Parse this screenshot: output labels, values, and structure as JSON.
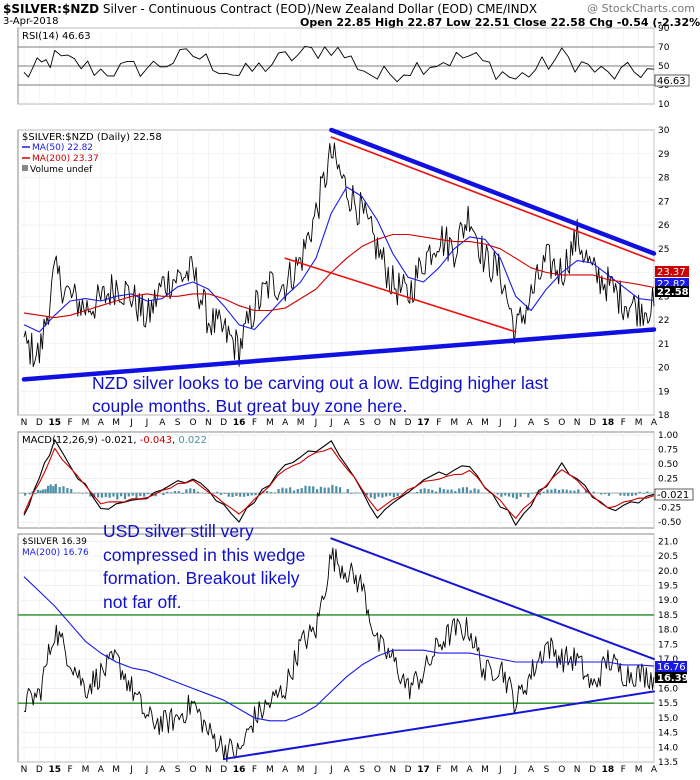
{
  "header": {
    "symbol": "$SILVER:$NZD",
    "description": "Silver - Continuous Contract (EOD)/New Zealand Dollar (EOD)",
    "exchange": "CME/INDX",
    "date": "3-Apr-2018",
    "open": "Open 22.85",
    "high": "High 22.87",
    "low": "Low 22.51",
    "close": "Close 22.58",
    "change": "Chg -0.54 (-2.32%)",
    "copyright": "@ StockCharts.com"
  },
  "colors": {
    "price": "#000000",
    "ma50": "#1a1ae6",
    "ma200": "#cc0000",
    "trend_thick": "#1010e0",
    "trend_red": "#ee1111",
    "trend_thin": "#1515d8",
    "horizontal": "#228b22",
    "macd_hist": "#4a8fa8",
    "annotation": "#1010c8"
  },
  "rsi_panel": {
    "legend": "RSI(14) 46.63",
    "ticks": [
      "90",
      "70",
      "50",
      "30",
      "10"
    ],
    "current_label": "46.63"
  },
  "nzd_panel": {
    "legend_symbol": "$SILVER:$NZD (Daily) 22.58",
    "legend_ma50": "MA(50) 22.82",
    "legend_ma200": "MA(200) 23.37",
    "legend_volume": "Volume undef",
    "ticks": [
      "30",
      "29",
      "28",
      "27",
      "26",
      "25",
      "24",
      "23",
      "22",
      "21",
      "20",
      "19",
      "18"
    ],
    "label_ma200": "23.37",
    "label_ma50": "22.82",
    "label_close": "22.58",
    "annotation_line1": "NZD silver looks to be carving out a low. Edging higher last",
    "annotation_line2": "couple months. But great buy zone here."
  },
  "macd_panel": {
    "legend_prefix": "MACD(12,26,9)",
    "legend_v1": "-0.021",
    "legend_v2": "-0.043",
    "legend_v3": "0.022",
    "ticks": [
      "1.00",
      "0.75",
      "0.50",
      "0.25",
      "0.00",
      "-0.25",
      "-0.50"
    ],
    "current_label": "-0.021"
  },
  "usd_panel": {
    "legend_symbol": "$SILVER 16.39",
    "legend_ma200": "MA(200) 16.76",
    "ticks": [
      "21.0",
      "20.5",
      "20.0",
      "19.5",
      "19.0",
      "18.5",
      "18.0",
      "17.5",
      "17.0",
      "16.5",
      "16.0",
      "15.5",
      "15.0",
      "14.5",
      "14.0",
      "13.5"
    ],
    "label_ma200": "16.76",
    "label_close": "16.39",
    "annotation_line1": "USD silver still very",
    "annotation_line2": "compressed in this wedge",
    "annotation_line3": "formation. Breakout likely",
    "annotation_line4": "not far off."
  },
  "x_axis": {
    "labels": [
      "N",
      "D",
      "15",
      "F",
      "M",
      "A",
      "M",
      "J",
      "J",
      "A",
      "S",
      "O",
      "N",
      "D",
      "16",
      "F",
      "M",
      "A",
      "M",
      "J",
      "J",
      "A",
      "S",
      "O",
      "N",
      "D",
      "17",
      "F",
      "M",
      "A",
      "M",
      "J",
      "J",
      "A",
      "S",
      "O",
      "N",
      "D",
      "18",
      "F",
      "M",
      "A"
    ]
  },
  "chart_data": [
    {
      "type": "line",
      "name": "RSI(14)",
      "ylim": [
        10,
        90
      ],
      "guide_lines": [
        70,
        50,
        30
      ],
      "x": [
        "2014-11",
        "2015-01",
        "2015-04",
        "2015-07",
        "2015-10",
        "2016-01",
        "2016-04",
        "2016-07",
        "2016-10",
        "2017-01",
        "2017-04",
        "2017-07",
        "2017-10",
        "2018-01",
        "2018-04"
      ],
      "values": [
        40,
        58,
        45,
        48,
        62,
        40,
        58,
        70,
        38,
        52,
        60,
        36,
        60,
        40,
        46.63
      ]
    },
    {
      "type": "line",
      "title": "$SILVER:$NZD (Daily)",
      "ylim": [
        18,
        30
      ],
      "x": [
        "2014-11",
        "2014-12",
        "2015-01",
        "2015-02",
        "2015-03",
        "2015-04",
        "2015-05",
        "2015-06",
        "2015-07",
        "2015-08",
        "2015-09",
        "2015-10",
        "2015-11",
        "2015-12",
        "2016-01",
        "2016-02",
        "2016-03",
        "2016-04",
        "2016-05",
        "2016-06",
        "2016-07",
        "2016-08",
        "2016-09",
        "2016-10",
        "2016-11",
        "2016-12",
        "2017-01",
        "2017-02",
        "2017-03",
        "2017-04",
        "2017-05",
        "2017-06",
        "2017-07",
        "2017-08",
        "2017-09",
        "2017-10",
        "2017-11",
        "2017-12",
        "2018-01",
        "2018-02",
        "2018-03",
        "2018-04"
      ],
      "series": [
        {
          "name": "$SILVER:$NZD",
          "values": [
            21.0,
            20.5,
            24.0,
            23.0,
            22.5,
            22.8,
            23.5,
            23.0,
            22.0,
            23.5,
            23.8,
            24.0,
            22.0,
            21.5,
            20.8,
            22.5,
            23.5,
            23.5,
            24.5,
            26.5,
            29.0,
            27.5,
            26.5,
            25.0,
            23.5,
            23.0,
            24.5,
            25.5,
            25.0,
            26.5,
            24.5,
            24.0,
            21.5,
            23.0,
            24.5,
            24.0,
            25.5,
            24.0,
            23.5,
            22.8,
            22.5,
            22.58
          ]
        },
        {
          "name": "MA(50)",
          "values": [
            21.8,
            21.5,
            22.2,
            22.8,
            22.9,
            22.8,
            23.0,
            23.1,
            22.8,
            22.9,
            23.4,
            23.6,
            23.3,
            22.6,
            21.8,
            21.6,
            22.3,
            23.0,
            23.6,
            24.6,
            26.5,
            27.6,
            27.2,
            26.2,
            24.8,
            23.8,
            23.6,
            24.2,
            25.0,
            25.5,
            25.4,
            24.6,
            23.0,
            22.4,
            23.3,
            24.0,
            24.5,
            24.4,
            23.9,
            23.4,
            22.9,
            22.82
          ]
        },
        {
          "name": "MA(200)",
          "values": [
            22.3,
            22.2,
            22.1,
            22.2,
            22.4,
            22.6,
            22.8,
            23.0,
            23.1,
            23.0,
            23.0,
            23.1,
            23.1,
            22.9,
            22.6,
            22.4,
            22.4,
            22.5,
            22.9,
            23.3,
            24.0,
            24.6,
            25.1,
            25.4,
            25.6,
            25.6,
            25.5,
            25.4,
            25.3,
            25.3,
            25.2,
            25.0,
            24.6,
            24.2,
            24.0,
            23.9,
            23.9,
            23.9,
            23.7,
            23.6,
            23.5,
            23.37
          ]
        }
      ],
      "trendlines": [
        {
          "name": "upper wedge",
          "from": [
            "2016-07",
            30.0
          ],
          "to": [
            "2018-04",
            24.8
          ]
        },
        {
          "name": "lower support",
          "from": [
            "2014-11",
            19.5
          ],
          "to": [
            "2018-04",
            21.6
          ]
        },
        {
          "name": "upper channel",
          "from": [
            "2016-07",
            29.7
          ],
          "to": [
            "2018-04",
            24.5
          ]
        },
        {
          "name": "lower channel",
          "from": [
            "2016-04",
            24.6
          ],
          "to": [
            "2017-07",
            21.5
          ]
        }
      ]
    },
    {
      "type": "line",
      "name": "MACD(12,26,9)",
      "ylim": [
        -0.6,
        1.05
      ],
      "x": [
        "2014-11",
        "2015-01",
        "2015-04",
        "2015-07",
        "2015-10",
        "2016-01",
        "2016-04",
        "2016-07",
        "2016-10",
        "2017-01",
        "2017-04",
        "2017-07",
        "2017-10",
        "2018-01",
        "2018-04"
      ],
      "series": [
        {
          "name": "MACD",
          "values": [
            -0.4,
            0.9,
            -0.3,
            -0.1,
            0.3,
            -0.45,
            0.5,
            0.9,
            -0.4,
            0.25,
            0.45,
            -0.5,
            0.5,
            -0.3,
            -0.021
          ]
        },
        {
          "name": "Signal",
          "values": [
            -0.35,
            0.75,
            -0.2,
            -0.05,
            0.25,
            -0.38,
            0.42,
            0.8,
            -0.3,
            0.2,
            0.38,
            -0.42,
            0.42,
            -0.25,
            -0.043
          ]
        },
        {
          "name": "Histogram",
          "values": [
            -0.05,
            0.15,
            -0.1,
            -0.05,
            0.05,
            -0.07,
            0.08,
            0.1,
            -0.1,
            0.05,
            0.07,
            -0.08,
            0.08,
            -0.05,
            0.022
          ]
        }
      ]
    },
    {
      "type": "line",
      "title": "$SILVER",
      "ylim": [
        13.5,
        21.25
      ],
      "x": [
        "2014-11",
        "2014-12",
        "2015-01",
        "2015-02",
        "2015-03",
        "2015-04",
        "2015-05",
        "2015-06",
        "2015-07",
        "2015-08",
        "2015-09",
        "2015-10",
        "2015-11",
        "2015-12",
        "2016-01",
        "2016-02",
        "2016-03",
        "2016-04",
        "2016-05",
        "2016-06",
        "2016-07",
        "2016-08",
        "2016-09",
        "2016-10",
        "2016-11",
        "2016-12",
        "2017-01",
        "2017-02",
        "2017-03",
        "2017-04",
        "2017-05",
        "2017-06",
        "2017-07",
        "2017-08",
        "2017-09",
        "2017-10",
        "2017-11",
        "2017-12",
        "2018-01",
        "2018-02",
        "2018-03",
        "2018-04"
      ],
      "series": [
        {
          "name": "$SILVER",
          "values": [
            15.5,
            15.8,
            18.0,
            17.0,
            16.0,
            16.5,
            17.0,
            16.0,
            15.0,
            14.8,
            15.0,
            15.5,
            14.5,
            14.0,
            13.8,
            15.0,
            15.5,
            16.0,
            17.5,
            18.0,
            20.5,
            20.0,
            19.5,
            17.5,
            17.0,
            16.0,
            16.5,
            17.5,
            18.0,
            18.0,
            16.5,
            16.8,
            15.5,
            16.5,
            17.5,
            17.0,
            17.0,
            16.0,
            17.0,
            16.5,
            16.5,
            16.39
          ]
        },
        {
          "name": "MA(200)",
          "values": [
            19.8,
            19.3,
            18.8,
            18.2,
            17.6,
            17.2,
            16.9,
            16.7,
            16.6,
            16.4,
            16.2,
            16.0,
            15.8,
            15.6,
            15.3,
            15.0,
            14.9,
            14.9,
            15.1,
            15.4,
            15.9,
            16.4,
            16.8,
            17.1,
            17.3,
            17.3,
            17.3,
            17.2,
            17.2,
            17.2,
            17.1,
            17.0,
            16.9,
            16.9,
            16.9,
            16.9,
            16.9,
            16.9,
            16.9,
            16.8,
            16.8,
            16.76
          ]
        }
      ],
      "trendlines": [
        {
          "name": "upper wedge",
          "from": [
            "2016-07",
            21.1
          ],
          "to": [
            "2018-04",
            17.0
          ]
        },
        {
          "name": "lower wedge",
          "from": [
            "2015-12",
            13.6
          ],
          "to": [
            "2018-04",
            15.9
          ]
        }
      ],
      "horizontal_lines": [
        18.5,
        15.5
      ]
    }
  ]
}
